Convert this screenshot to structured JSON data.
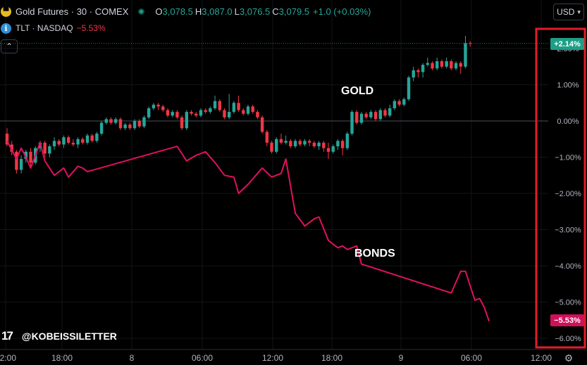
{
  "legend": {
    "symbol": "Gold Futures · 30 · COMEX",
    "open_key": "O",
    "open": "3,078.5",
    "high_key": "H",
    "high": "3,087.0",
    "low_key": "L",
    "low": "3,076.5",
    "close_key": "C",
    "close": "3,079.5",
    "change": "+1.0 (+0.03%)",
    "compare_symbol": "TLT · NASDAQ",
    "compare_change": "−5.53%"
  },
  "toolbar": {
    "collapse_label": "⌃",
    "currency": "USD",
    "currency_caret": "▾"
  },
  "watermark": {
    "logo": "17",
    "handle": "@KOBEISSILETTER"
  },
  "annotations": {
    "gold": "GOLD",
    "bonds": "BONDS"
  },
  "price_tags": {
    "gold_last": "+2.14%",
    "bonds_last": "−5.53%"
  },
  "icons": {
    "gold": "gold-bars-icon",
    "info": "info-icon",
    "settings": "settings-gear-icon",
    "live": "live-dot-icon"
  },
  "colors": {
    "up": "#26a69a",
    "down": "#f23645",
    "bonds_line": "#e0105e",
    "highlight_box": "#e01e2a",
    "background": "#000000"
  },
  "chart_data": {
    "type": "line",
    "title": "",
    "y_unit": "%",
    "y_ticks": [
      "2.00%",
      "1.00%",
      "0.00%",
      "−1.00%",
      "−2.00%",
      "−3.00%",
      "−4.00%",
      "−5.00%",
      "−6.00%"
    ],
    "y_tick_values": [
      2,
      1,
      0,
      -1,
      -2,
      -3,
      -4,
      -5,
      -6
    ],
    "ylim": [
      -6.3,
      2.45
    ],
    "x_ticks": [
      "12:00",
      "18:00",
      "8",
      "06:00",
      "12:00",
      "18:00",
      "9",
      "06:00",
      "12:00"
    ],
    "x_tick_index": [
      0,
      12,
      24,
      36,
      48,
      60,
      72,
      84,
      96
    ],
    "x_range": [
      0,
      102
    ],
    "baseline": 0,
    "grid": true,
    "series": [
      {
        "name": "GOLD",
        "kind": "candlestick",
        "unit": "% change",
        "candles": [
          [
            -0.35,
            -0.65,
            -0.2,
            -0.7
          ],
          [
            -0.65,
            -0.85,
            -0.55,
            -0.95
          ],
          [
            -0.85,
            -1.35,
            -0.8,
            -1.45
          ],
          [
            -1.35,
            -1.05,
            -0.95,
            -1.45
          ],
          [
            -1.05,
            -0.85,
            -0.8,
            -1.15
          ],
          [
            -0.85,
            -1.15,
            -0.75,
            -1.25
          ],
          [
            -1.15,
            -0.75,
            -0.7,
            -1.2
          ],
          [
            -0.75,
            -0.6,
            -0.55,
            -0.85
          ],
          [
            -0.6,
            -0.9,
            -0.55,
            -1.0
          ],
          [
            -0.9,
            -0.7,
            -0.65,
            -1.0
          ],
          [
            -0.7,
            -0.55,
            -0.45,
            -0.8
          ],
          [
            -0.55,
            -0.65,
            -0.5,
            -0.7
          ],
          [
            -0.65,
            -0.45,
            -0.4,
            -0.75
          ],
          [
            -0.45,
            -0.6,
            -0.4,
            -0.65
          ],
          [
            -0.6,
            -0.65,
            -0.5,
            -0.7
          ],
          [
            -0.65,
            -0.5,
            -0.45,
            -0.75
          ],
          [
            -0.5,
            -0.6,
            -0.45,
            -0.65
          ],
          [
            -0.6,
            -0.4,
            -0.35,
            -0.65
          ],
          [
            -0.4,
            -0.55,
            -0.35,
            -0.6
          ],
          [
            -0.55,
            -0.35,
            -0.3,
            -0.6
          ],
          [
            -0.35,
            -0.05,
            0.0,
            -0.4
          ],
          [
            -0.05,
            0.05,
            0.1,
            -0.1
          ],
          [
            0.05,
            -0.05,
            0.1,
            -0.1
          ],
          [
            -0.05,
            0.05,
            0.1,
            -0.1
          ],
          [
            0.05,
            -0.2,
            0.1,
            -0.25
          ],
          [
            -0.2,
            -0.1,
            -0.05,
            -0.25
          ],
          [
            -0.1,
            -0.2,
            -0.05,
            -0.25
          ],
          [
            -0.2,
            0.0,
            0.05,
            -0.25
          ],
          [
            0.0,
            -0.15,
            0.05,
            -0.2
          ],
          [
            -0.15,
            0.1,
            0.15,
            -0.2
          ],
          [
            0.1,
            0.35,
            0.4,
            0.05
          ],
          [
            0.35,
            0.45,
            0.5,
            0.3
          ],
          [
            0.45,
            0.4,
            0.5,
            0.3
          ],
          [
            0.4,
            0.3,
            0.45,
            0.25
          ],
          [
            0.3,
            0.15,
            0.35,
            0.1
          ],
          [
            0.15,
            0.25,
            0.3,
            0.1
          ],
          [
            0.25,
            0.1,
            0.3,
            0.05
          ],
          [
            0.1,
            -0.2,
            0.15,
            -0.25
          ],
          [
            -0.2,
            0.25,
            0.3,
            -0.25
          ],
          [
            0.25,
            0.2,
            0.3,
            0.15
          ],
          [
            0.2,
            0.15,
            0.25,
            0.1
          ],
          [
            0.15,
            0.3,
            0.35,
            0.1
          ],
          [
            0.3,
            0.25,
            0.35,
            0.2
          ],
          [
            0.25,
            0.35,
            0.4,
            0.2
          ],
          [
            0.35,
            0.55,
            0.7,
            0.3
          ],
          [
            0.55,
            0.3,
            0.6,
            0.25
          ],
          [
            0.3,
            0.1,
            0.35,
            0.05
          ],
          [
            0.1,
            0.25,
            0.75,
            0.05
          ],
          [
            0.25,
            0.5,
            0.55,
            0.2
          ],
          [
            0.5,
            0.3,
            0.7,
            0.25
          ],
          [
            0.3,
            0.2,
            0.35,
            0.15
          ],
          [
            0.2,
            0.4,
            0.45,
            0.15
          ],
          [
            0.4,
            0.25,
            0.45,
            0.2
          ],
          [
            0.25,
            0.1,
            0.3,
            0.05
          ],
          [
            0.1,
            -0.3,
            0.15,
            -0.35
          ],
          [
            -0.3,
            -0.6,
            -0.25,
            -0.7
          ],
          [
            -0.6,
            -0.85,
            -0.55,
            -0.9
          ],
          [
            -0.85,
            -0.5,
            -0.45,
            -0.9
          ],
          [
            -0.5,
            -0.6,
            -0.35,
            -0.65
          ],
          [
            -0.6,
            -0.55,
            -0.4,
            -0.65
          ],
          [
            -0.55,
            -0.7,
            -0.5,
            -0.75
          ],
          [
            -0.7,
            -0.55,
            -0.5,
            -0.75
          ],
          [
            -0.55,
            -0.65,
            -0.5,
            -0.7
          ],
          [
            -0.65,
            -0.55,
            -0.5,
            -0.7
          ],
          [
            -0.55,
            -0.6,
            -0.5,
            -0.7
          ],
          [
            -0.6,
            -0.7,
            -0.55,
            -0.75
          ],
          [
            -0.7,
            -0.6,
            -0.55,
            -0.8
          ],
          [
            -0.6,
            -0.75,
            -0.55,
            -0.85
          ],
          [
            -0.75,
            -0.85,
            -0.6,
            -1.05
          ],
          [
            -0.85,
            -0.7,
            -0.65,
            -0.9
          ],
          [
            -0.7,
            -0.55,
            -0.5,
            -0.8
          ],
          [
            -0.55,
            -0.75,
            -0.5,
            -0.95
          ],
          [
            -0.75,
            -0.35,
            -0.3,
            -0.8
          ],
          [
            -0.35,
            0.25,
            0.3,
            -0.4
          ],
          [
            0.25,
            -0.05,
            0.3,
            -0.1
          ],
          [
            -0.05,
            0.2,
            0.25,
            -0.1
          ],
          [
            0.2,
            0.1,
            0.25,
            0.05
          ],
          [
            0.1,
            0.25,
            0.3,
            0.05
          ],
          [
            0.25,
            0.05,
            0.3,
            0.0
          ],
          [
            0.05,
            0.3,
            0.35,
            0.0
          ],
          [
            0.3,
            0.15,
            0.35,
            0.1
          ],
          [
            0.15,
            0.35,
            0.45,
            0.1
          ],
          [
            0.35,
            0.55,
            0.6,
            0.3
          ],
          [
            0.55,
            0.45,
            0.6,
            0.4
          ],
          [
            0.45,
            0.6,
            0.65,
            0.4
          ],
          [
            0.6,
            1.2,
            1.25,
            0.55
          ],
          [
            1.2,
            1.4,
            1.5,
            1.1
          ],
          [
            1.4,
            1.35,
            1.45,
            1.2
          ],
          [
            1.35,
            1.55,
            1.6,
            1.2
          ],
          [
            1.55,
            1.6,
            1.75,
            1.5
          ],
          [
            1.6,
            1.45,
            1.65,
            1.4
          ],
          [
            1.45,
            1.65,
            1.75,
            1.4
          ],
          [
            1.65,
            1.5,
            1.7,
            1.45
          ],
          [
            1.5,
            1.65,
            1.75,
            1.45
          ],
          [
            1.65,
            1.45,
            1.7,
            1.4
          ],
          [
            1.45,
            1.6,
            1.65,
            1.4
          ],
          [
            1.6,
            1.5,
            1.65,
            1.3
          ],
          [
            1.5,
            2.15,
            2.35,
            1.45
          ],
          [
            2.15,
            2.14,
            2.2,
            2.05
          ]
        ]
      },
      {
        "name": "BONDS",
        "kind": "line",
        "unit": "% change",
        "points": [
          [
            0,
            -0.55
          ],
          [
            2,
            -1.05
          ],
          [
            3,
            -0.75
          ],
          [
            4,
            -1.0
          ],
          [
            5,
            -1.3
          ],
          [
            6,
            -0.95
          ],
          [
            7,
            -0.6
          ],
          [
            8,
            -1.1
          ],
          [
            10,
            -1.5
          ],
          [
            12,
            -1.3
          ],
          [
            13,
            -1.55
          ],
          [
            15,
            -1.25
          ],
          [
            16,
            -1.3
          ],
          [
            17,
            -1.4
          ],
          [
            36,
            -0.7
          ],
          [
            38,
            -1.1
          ],
          [
            40,
            -0.95
          ],
          [
            42,
            -0.85
          ],
          [
            44,
            -1.15
          ],
          [
            46,
            -1.5
          ],
          [
            48,
            -1.55
          ],
          [
            49,
            -2.0
          ],
          [
            51,
            -1.75
          ],
          [
            52,
            -1.6
          ],
          [
            54,
            -1.3
          ],
          [
            56,
            -1.55
          ],
          [
            58,
            -1.45
          ],
          [
            59,
            -1.05
          ],
          [
            61,
            -2.55
          ],
          [
            63,
            -2.9
          ],
          [
            65,
            -2.7
          ],
          [
            66,
            -2.65
          ],
          [
            68,
            -3.3
          ],
          [
            70,
            -3.5
          ],
          [
            71,
            -3.45
          ],
          [
            72,
            -3.55
          ],
          [
            74,
            -3.45
          ],
          [
            75,
            -3.95
          ],
          [
            94,
            -4.75
          ],
          [
            96,
            -4.15
          ],
          [
            97,
            -4.15
          ],
          [
            99,
            -4.95
          ],
          [
            100,
            -4.9
          ],
          [
            101,
            -5.15
          ],
          [
            102,
            -5.53
          ]
        ]
      }
    ]
  }
}
